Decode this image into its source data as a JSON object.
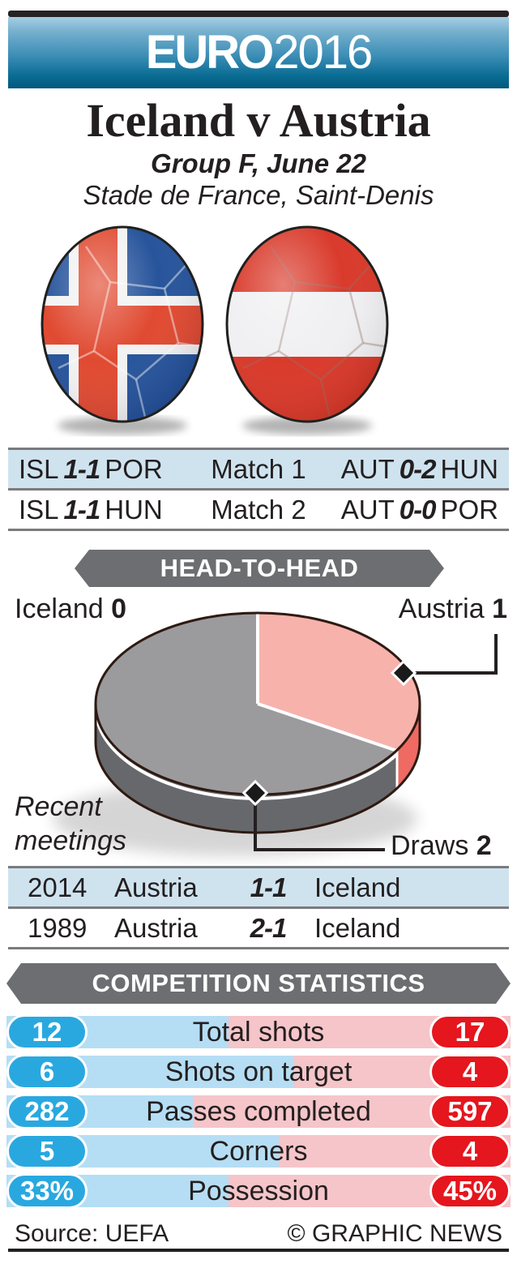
{
  "header": {
    "logo_euro": "EURO",
    "logo_year": "2016"
  },
  "match": {
    "title": "Iceland v Austria",
    "group_line": "Group F, June 22",
    "venue_line": "Stade de France, Saint-Denis"
  },
  "teams": {
    "home": "Iceland",
    "away": "Austria"
  },
  "group_results": {
    "rows": [
      {
        "left_team": "ISL",
        "left_score": "1-1",
        "left_opp": "POR",
        "match_label": "Match 1",
        "right_team": "AUT",
        "right_score": "0-2",
        "right_opp": "HUN"
      },
      {
        "left_team": "ISL",
        "left_score": "1-1",
        "left_opp": "HUN",
        "match_label": "Match 2",
        "right_team": "AUT",
        "right_score": "0-0",
        "right_opp": "POR"
      }
    ]
  },
  "head_to_head": {
    "banner": "HEAD-TO-HEAD",
    "iceland_label": "Iceland",
    "iceland_wins": "0",
    "austria_label": "Austria",
    "austria_wins": "1",
    "draws_label": "Draws",
    "draws": "2",
    "note_line1": "Recent",
    "note_line2": "meetings"
  },
  "chart_data": [
    {
      "type": "pie",
      "title": "HEAD-TO-HEAD",
      "note": "Recent meetings",
      "slices": [
        {
          "label": "Austria wins",
          "value": 1,
          "color": "#f7b2ac"
        },
        {
          "label": "Draws",
          "value": 2,
          "color": "#9b9b9e"
        },
        {
          "label": "Iceland wins",
          "value": 0,
          "color": "none"
        }
      ],
      "legend_position": "callout-labels",
      "style": "3d-cylinder"
    },
    {
      "type": "bar",
      "title": "COMPETITION STATISTICS",
      "categories": [
        "Total shots",
        "Shots on target",
        "Passes completed",
        "Corners",
        "Possession"
      ],
      "series": [
        {
          "name": "Iceland",
          "values": [
            "12",
            "6",
            "282",
            "5",
            "33%"
          ]
        },
        {
          "name": "Austria",
          "values": [
            "17",
            "4",
            "597",
            "4",
            "45%"
          ]
        }
      ]
    }
  ],
  "recent_meetings": {
    "rows": [
      {
        "year": "2014",
        "home": "Austria",
        "score": "1-1",
        "away": "Iceland"
      },
      {
        "year": "1989",
        "home": "Austria",
        "score": "2-1",
        "away": "Iceland"
      }
    ]
  },
  "competition_stats": {
    "banner": "COMPETITION STATISTICS",
    "rows": [
      {
        "left": "12",
        "label": "Total shots",
        "right": "17",
        "blue_pct": 44
      },
      {
        "left": "6",
        "label": "Shots on target",
        "right": "4",
        "blue_pct": 57
      },
      {
        "left": "282",
        "label": "Passes completed",
        "right": "597",
        "blue_pct": 37
      },
      {
        "left": "5",
        "label": "Corners",
        "right": "4",
        "blue_pct": 54
      },
      {
        "left": "33%",
        "label": "Possession",
        "right": "45%",
        "blue_pct": 44
      }
    ]
  },
  "footer": {
    "source": "Source: UEFA",
    "credit": "© GRAPHIC NEWS"
  },
  "colors": {
    "ink": "#231f20",
    "accent_blue": "#29a8e0",
    "accent_red": "#e5161d",
    "bar_blue": "#b5def4",
    "bar_pink": "#f5c5c9",
    "row_highlight": "#cfe3ef",
    "rule_gray": "#7a7b7e",
    "banner_gray": "#6d6e71",
    "pie_pink": "#f7b2ac",
    "pie_pink_side": "#ee6a63",
    "pie_gray": "#9b9b9e",
    "pie_gray_side": "#67686b",
    "pie_outline": "#2e1a12",
    "header_gradient_top": "#a6cde4",
    "header_gradient_bottom": "#00587c",
    "iceland_blue": "#27549b",
    "iceland_red": "#e04a31",
    "austria_red": "#d93a2b"
  }
}
